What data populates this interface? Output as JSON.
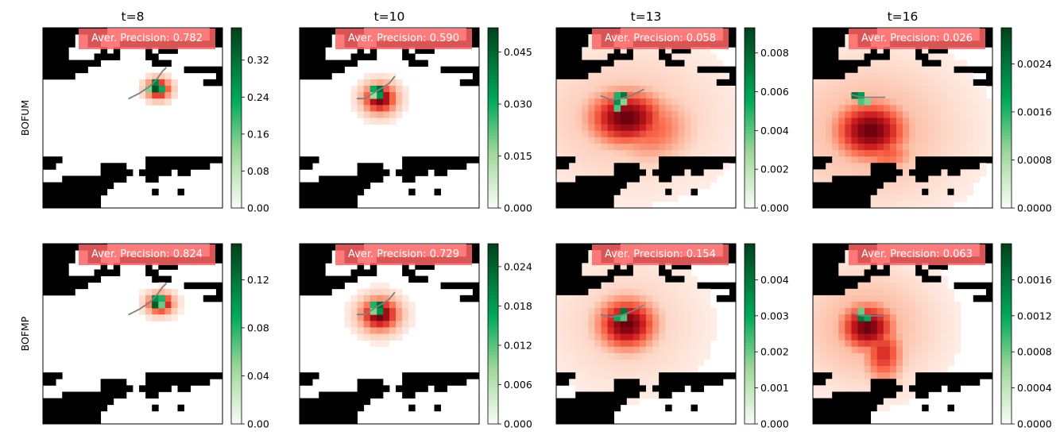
{
  "chart_data": {
    "type": "heatmap",
    "columns": [
      "t=8",
      "t=10",
      "t=13",
      "t=16"
    ],
    "rows": [
      "BOFUM",
      "BOFMP"
    ],
    "colormaps": {
      "prediction": "Reds",
      "ground_truth": "Greens",
      "occupancy": "binary"
    },
    "colors": {
      "occupied": "#000000",
      "free": "#ffffff",
      "trajectory": "#808080",
      "ap_box": "#ff6464",
      "ap_text": "#ffffff",
      "green_dark": "#00441b",
      "green_light": "#f7fcf5"
    },
    "panels": [
      [
        {
          "ap_label": "Aver. Precision: 0.782",
          "colorbar": {
            "min": 0,
            "max": 0.39,
            "ticks": [
              "0.00",
              "0.08",
              "0.16",
              "0.24",
              "0.32"
            ]
          },
          "blobs": [
            {
              "cx": 17.5,
              "cy": 9.0,
              "sx": 1.3,
              "sy": 1.1,
              "w": 1.0
            }
          ],
          "spread": 0,
          "truth": [
            {
              "x": 17,
              "y": 8,
              "v": 0.75
            },
            {
              "x": 18,
              "y": 9,
              "v": 0.6
            },
            {
              "x": 16,
              "y": 9,
              "v": 0.35
            },
            {
              "x": 17,
              "y": 9,
              "v": 0.95
            }
          ],
          "trajectory": [
            [
              13.4,
              11.0
            ],
            [
              15.0,
              10.2
            ],
            [
              16.8,
              9.0
            ],
            [
              17.9,
              7.8
            ],
            [
              18.6,
              6.8
            ],
            [
              19.2,
              6.2
            ]
          ]
        },
        {
          "ap_label": "Aver. Precision: 0.590",
          "colorbar": {
            "min": 0,
            "max": 0.052,
            "ticks": [
              "0.000",
              "0.015",
              "0.030",
              "0.045"
            ]
          },
          "blobs": [
            {
              "cx": 12.0,
              "cy": 10.5,
              "sx": 1.8,
              "sy": 1.6,
              "w": 1.0
            }
          ],
          "spread": 0,
          "truth": [
            {
              "x": 12,
              "y": 9,
              "v": 0.85
            },
            {
              "x": 11,
              "y": 9,
              "v": 0.6
            },
            {
              "x": 12,
              "y": 10,
              "v": 0.7
            },
            {
              "x": 11,
              "y": 10,
              "v": 0.3
            }
          ],
          "trajectory": [
            [
              9.0,
              11.0
            ],
            [
              10.2,
              11.0
            ],
            [
              11.4,
              10.2
            ],
            [
              12.8,
              9.4
            ],
            [
              14.0,
              8.6
            ],
            [
              14.8,
              7.6
            ]
          ]
        },
        {
          "ap_label": "Aver. Precision: 0.058",
          "colorbar": {
            "min": 0,
            "max": 0.0093,
            "ticks": [
              "0.000",
              "0.002",
              "0.004",
              "0.006",
              "0.008"
            ]
          },
          "blobs": [
            {
              "cx": 10.5,
              "cy": 13.5,
              "sx": 4.2,
              "sy": 3.0,
              "w": 1.0
            },
            {
              "cx": 14.0,
              "cy": 15.0,
              "sx": 4.5,
              "sy": 3.6,
              "w": 0.55
            }
          ],
          "spread": 0.22,
          "truth": [
            {
              "x": 10,
              "y": 10,
              "v": 0.8
            },
            {
              "x": 9,
              "y": 10,
              "v": 0.55
            },
            {
              "x": 9,
              "y": 11,
              "v": 0.7
            },
            {
              "x": 10,
              "y": 11,
              "v": 0.35
            },
            {
              "x": 9,
              "y": 12,
              "v": 0.45
            }
          ],
          "trajectory": [
            [
              7.0,
              10.6
            ],
            [
              8.6,
              11.2
            ],
            [
              10.0,
              11.0
            ],
            [
              11.6,
              10.6
            ],
            [
              12.8,
              10.0
            ],
            [
              13.6,
              9.6
            ]
          ]
        },
        {
          "ap_label": "Aver. Precision: 0.026",
          "colorbar": {
            "min": 0,
            "max": 0.003,
            "ticks": [
              "0.0000",
              "0.0008",
              "0.0016",
              "0.0024"
            ]
          },
          "blobs": [
            {
              "cx": 8.5,
              "cy": 15.5,
              "sx": 4.0,
              "sy": 3.2,
              "w": 1.0
            },
            {
              "cx": 11.0,
              "cy": 19.0,
              "sx": 3.0,
              "sy": 2.0,
              "w": 0.55
            }
          ],
          "spread": 0.28,
          "truth": [
            {
              "x": 6,
              "y": 10,
              "v": 0.8
            },
            {
              "x": 7,
              "y": 10,
              "v": 0.65
            },
            {
              "x": 7,
              "y": 11,
              "v": 0.45
            },
            {
              "x": 8,
              "y": 11,
              "v": 0.35
            }
          ],
          "trajectory": [
            [
              6.0,
              10.4
            ],
            [
              7.6,
              10.8
            ],
            [
              9.2,
              10.8
            ],
            [
              10.4,
              10.8
            ],
            [
              11.2,
              10.8
            ]
          ]
        }
      ],
      [
        {
          "ap_label": "Aver. Precision: 0.824",
          "colorbar": {
            "min": 0,
            "max": 0.15,
            "ticks": [
              "0.00",
              "0.04",
              "0.08",
              "0.12"
            ]
          },
          "blobs": [
            {
              "cx": 17.8,
              "cy": 8.8,
              "sx": 1.4,
              "sy": 1.1,
              "w": 1.0
            }
          ],
          "spread": 0,
          "truth": [
            {
              "x": 17,
              "y": 8,
              "v": 0.7
            },
            {
              "x": 18,
              "y": 8,
              "v": 0.55
            },
            {
              "x": 17,
              "y": 9,
              "v": 0.9
            },
            {
              "x": 18,
              "y": 9,
              "v": 0.4
            }
          ],
          "trajectory": [
            [
              13.4,
              11.0
            ],
            [
              15.0,
              10.2
            ],
            [
              16.8,
              9.0
            ],
            [
              17.9,
              7.8
            ],
            [
              18.6,
              6.8
            ],
            [
              19.2,
              6.2
            ]
          ]
        },
        {
          "ap_label": "Aver. Precision: 0.729",
          "colorbar": {
            "min": 0,
            "max": 0.0275,
            "ticks": [
              "0.000",
              "0.006",
              "0.012",
              "0.018",
              "0.024"
            ]
          },
          "blobs": [
            {
              "cx": 12.0,
              "cy": 10.5,
              "sx": 2.1,
              "sy": 1.8,
              "w": 1.0
            }
          ],
          "spread": 0,
          "truth": [
            {
              "x": 12,
              "y": 9,
              "v": 0.85
            },
            {
              "x": 11,
              "y": 9,
              "v": 0.55
            },
            {
              "x": 12,
              "y": 10,
              "v": 0.7
            },
            {
              "x": 11,
              "y": 10,
              "v": 0.35
            }
          ],
          "trajectory": [
            [
              9.0,
              11.0
            ],
            [
              10.2,
              11.0
            ],
            [
              11.4,
              10.2
            ],
            [
              12.8,
              9.4
            ],
            [
              14.0,
              8.6
            ],
            [
              14.8,
              7.6
            ]
          ]
        },
        {
          "ap_label": "Aver. Precision: 0.154",
          "colorbar": {
            "min": 0,
            "max": 0.005,
            "ticks": [
              "0.000",
              "0.001",
              "0.002",
              "0.003",
              "0.004"
            ]
          },
          "blobs": [
            {
              "cx": 10.5,
              "cy": 12.0,
              "sx": 3.2,
              "sy": 2.8,
              "w": 1.0
            }
          ],
          "spread": 0.18,
          "truth": [
            {
              "x": 10,
              "y": 10,
              "v": 0.8
            },
            {
              "x": 9,
              "y": 11,
              "v": 0.6
            },
            {
              "x": 10,
              "y": 11,
              "v": 0.45
            }
          ],
          "trajectory": [
            [
              7.0,
              11.0
            ],
            [
              8.6,
              11.4
            ],
            [
              10.0,
              11.2
            ],
            [
              11.6,
              10.6
            ],
            [
              12.8,
              10.0
            ],
            [
              13.6,
              9.6
            ]
          ]
        },
        {
          "ap_label": "Aver. Precision: 0.063",
          "colorbar": {
            "min": 0,
            "max": 0.002,
            "ticks": [
              "0.0000",
              "0.0004",
              "0.0008",
              "0.0012",
              "0.0016"
            ]
          },
          "blobs": [
            {
              "cx": 8.0,
              "cy": 12.5,
              "sx": 3.0,
              "sy": 2.6,
              "w": 1.0
            },
            {
              "cx": 10.5,
              "cy": 16.5,
              "sx": 2.2,
              "sy": 3.2,
              "w": 0.7
            }
          ],
          "spread": 0.3,
          "truth": [
            {
              "x": 7,
              "y": 11,
              "v": 0.8
            },
            {
              "x": 8,
              "y": 11,
              "v": 0.6
            },
            {
              "x": 7,
              "y": 10,
              "v": 0.4
            }
          ],
          "trajectory": [
            [
              6.0,
              10.8
            ],
            [
              7.6,
              11.2
            ],
            [
              9.2,
              11.2
            ],
            [
              10.4,
              11.2
            ],
            [
              11.2,
              11.2
            ]
          ]
        }
      ]
    ]
  }
}
